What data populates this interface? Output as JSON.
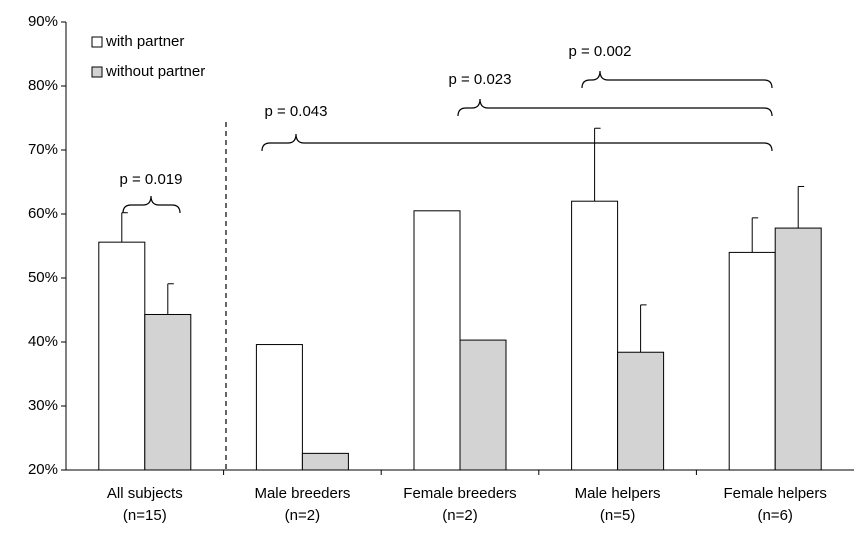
{
  "chart_data": {
    "type": "bar",
    "categories": [
      "All subjects",
      "Male breeders",
      "Female breeders",
      "Male helpers",
      "Female helpers"
    ],
    "category_notes": [
      "(n=15)",
      "(n=2)",
      "(n=2)",
      "(n=5)",
      "(n=6)"
    ],
    "series": [
      {
        "name": "with partner",
        "color": "#ffffff",
        "values": [
          55.6,
          39.6,
          60.5,
          62.0,
          54.0
        ],
        "errors": [
          4.6,
          null,
          null,
          11.4,
          5.4
        ]
      },
      {
        "name": "without partner",
        "color": "#d3d3d3",
        "values": [
          44.3,
          22.6,
          40.3,
          38.4,
          57.8
        ],
        "errors": [
          4.8,
          null,
          null,
          7.4,
          6.5
        ]
      }
    ],
    "ylim": [
      20,
      90
    ],
    "yticks": [
      {
        "value": 20,
        "label": "20%"
      },
      {
        "value": 30,
        "label": "30%"
      },
      {
        "value": 40,
        "label": "40%"
      },
      {
        "value": 50,
        "label": "50%"
      },
      {
        "value": 60,
        "label": "60%"
      },
      {
        "value": 70,
        "label": "70%"
      },
      {
        "value": 80,
        "label": "80%"
      },
      {
        "value": 90,
        "label": "90%"
      }
    ],
    "legend": "top-left",
    "annotations": [
      "p = 0.019",
      "p = 0.043",
      "p = 0.023",
      "p = 0.002"
    ]
  }
}
